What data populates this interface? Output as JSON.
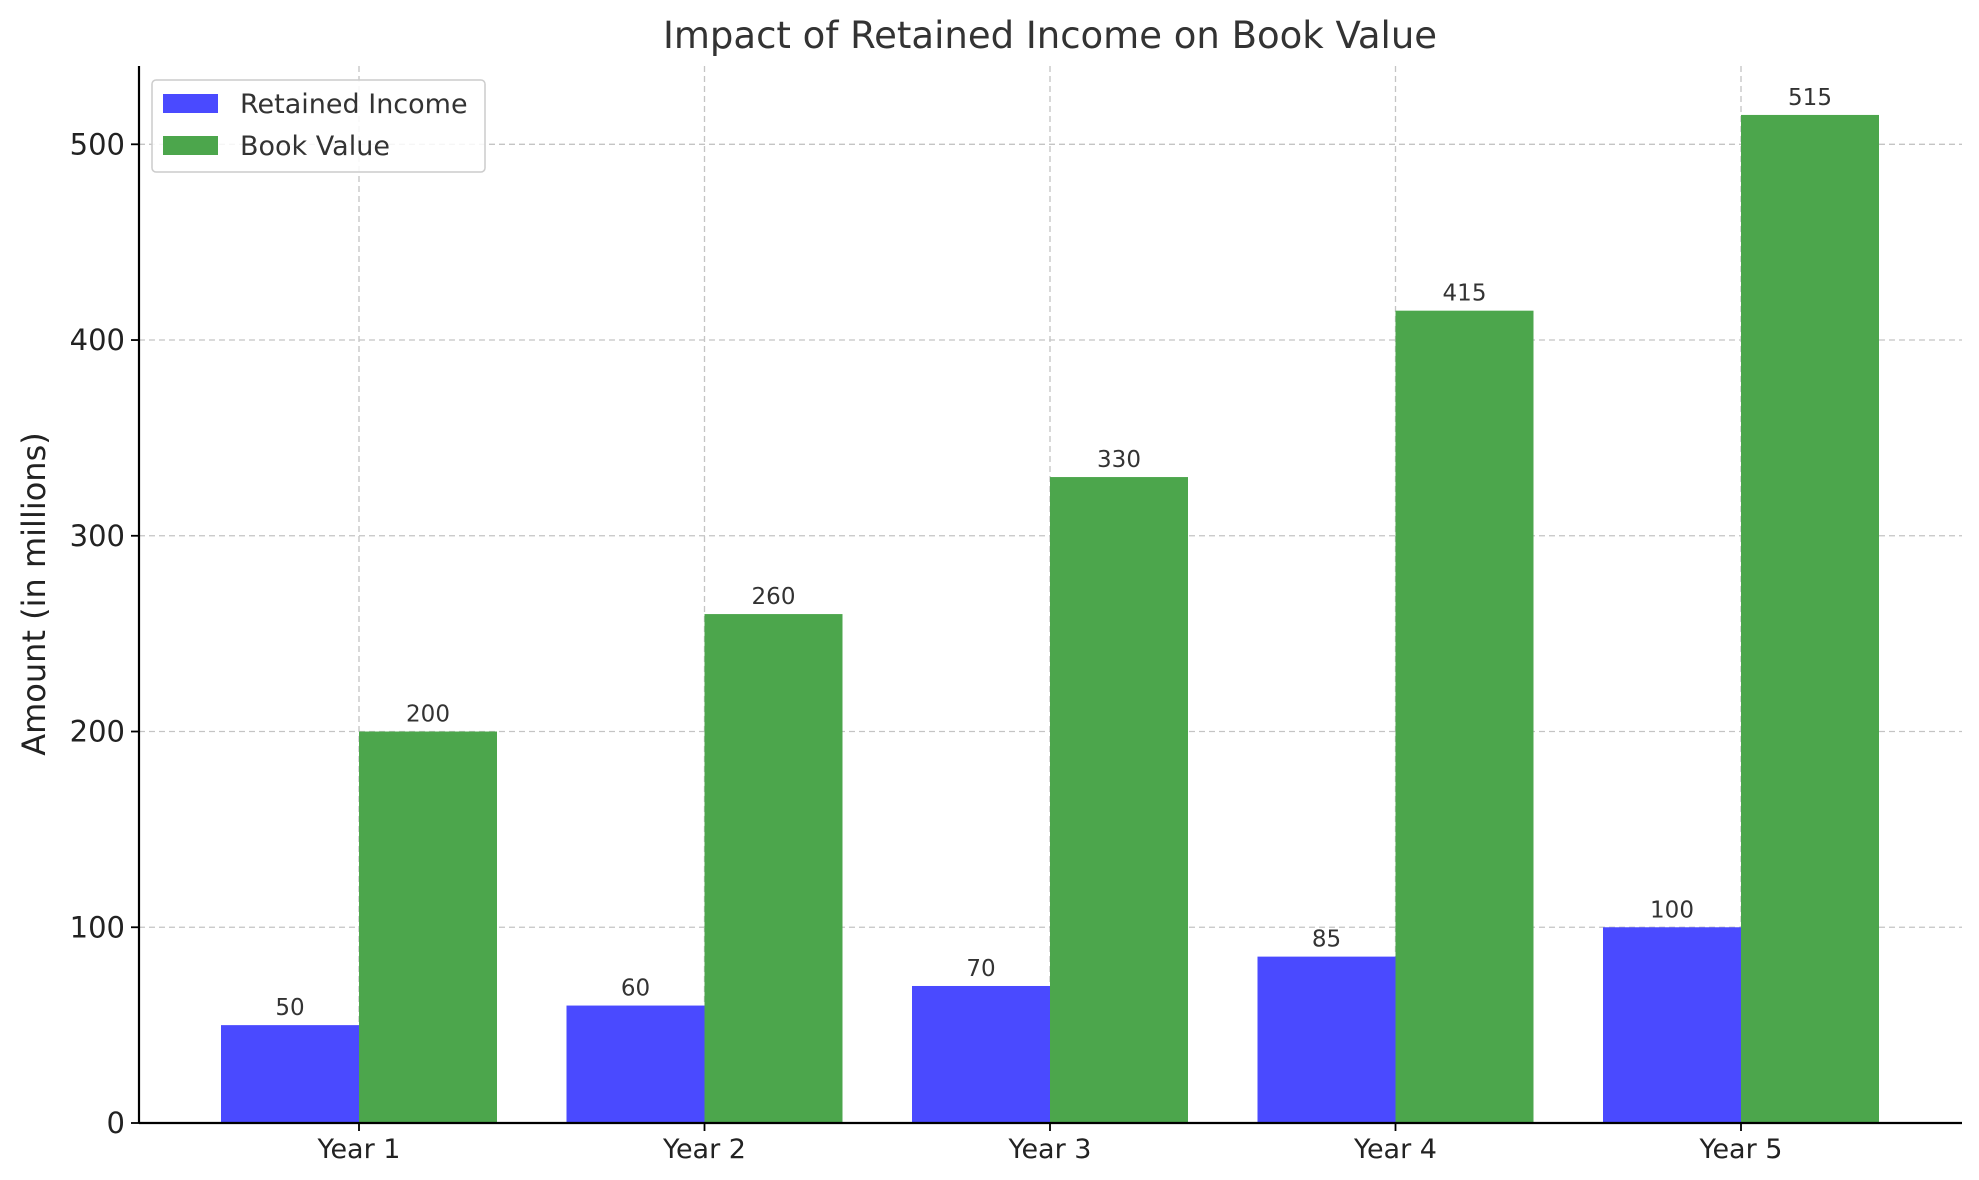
{
  "chart_data": {
    "type": "bar",
    "title": "Impact of Retained Income on Book Value",
    "xlabel": "",
    "ylabel": "Amount (in millions)",
    "categories": [
      "Year 1",
      "Year 2",
      "Year 3",
      "Year 4",
      "Year 5"
    ],
    "series": [
      {
        "name": "Retained Income",
        "values": [
          50,
          60,
          70,
          85,
          100
        ],
        "color": "#4a4aff"
      },
      {
        "name": "Book Value",
        "values": [
          200,
          260,
          330,
          415,
          515
        ],
        "color": "#4ca64c"
      }
    ],
    "ylim": [
      0,
      540
    ],
    "yticks": [
      0,
      100,
      200,
      300,
      400,
      500
    ],
    "grid": true,
    "legend_position": "top-left"
  }
}
